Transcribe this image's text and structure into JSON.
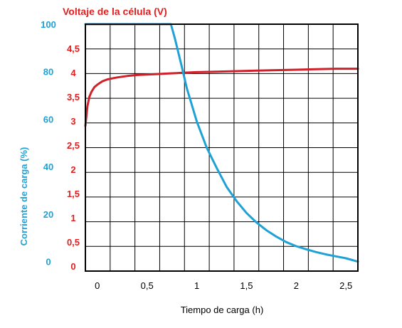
{
  "chart_data": {
    "type": "line",
    "title": "Voltaje de la célula (V)",
    "xlabel": "Tiempo de carga (h)",
    "ylabel_right_current": "Corriente de carga (%)",
    "xlim": [
      -0.12,
      2.62
    ],
    "x_ticks": [
      "0",
      "0,5",
      "1",
      "1,5",
      "2",
      "2,5"
    ],
    "x_tick_values": [
      0,
      0.5,
      1,
      1.5,
      2,
      2.5
    ],
    "voltage_axis": {
      "ticks": [
        "0",
        "0,5",
        "1",
        "1,5",
        "2",
        "2,5",
        "3",
        "3,5",
        "4",
        "4,5"
      ],
      "tick_values": [
        0,
        0.5,
        1,
        1.5,
        2,
        2.5,
        3,
        3.5,
        4,
        4.5
      ],
      "ylim": [
        -0.1,
        5.0
      ],
      "color": "#e02020"
    },
    "current_axis": {
      "ticks": [
        "0",
        "20",
        "40",
        "60",
        "80",
        "100"
      ],
      "tick_values": [
        0,
        20,
        40,
        60,
        80,
        100
      ],
      "ylim": [
        -4,
        100
      ],
      "color": "#1ea2d6"
    },
    "grid": true,
    "series": [
      {
        "axis": "voltage",
        "color": "#d0202a",
        "x": [
          -0.12,
          -0.11,
          -0.1,
          -0.08,
          -0.06,
          -0.03,
          0,
          0.05,
          0.1,
          0.15,
          0.2,
          0.3,
          0.4,
          0.5,
          0.6,
          0.7,
          0.8,
          0.9,
          1.0,
          1.2,
          1.4,
          1.6,
          1.8,
          2.0,
          2.2,
          2.4,
          2.62
        ],
        "y": [
          2.9,
          3.1,
          3.3,
          3.5,
          3.6,
          3.7,
          3.75,
          3.82,
          3.86,
          3.88,
          3.9,
          3.93,
          3.95,
          3.96,
          3.97,
          3.98,
          3.99,
          4.0,
          4.01,
          4.02,
          4.03,
          4.04,
          4.05,
          4.06,
          4.07,
          4.08,
          4.08
        ]
      },
      {
        "axis": "current",
        "color": "#1ea2d6",
        "x": [
          -0.12,
          0.0,
          0.2,
          0.4,
          0.6,
          0.74,
          0.78,
          0.85,
          0.9,
          0.95,
          1.0,
          1.1,
          1.2,
          1.3,
          1.4,
          1.5,
          1.6,
          1.7,
          1.8,
          1.9,
          2.0,
          2.1,
          2.2,
          2.3,
          2.4,
          2.5,
          2.62
        ],
        "y": [
          100,
          100,
          100,
          100,
          100,
          100,
          94,
          82,
          73,
          66,
          59,
          48,
          39.5,
          31.5,
          25.5,
          20.5,
          16.5,
          13.2,
          10.5,
          8.2,
          6.5,
          5.2,
          4,
          3,
          2.2,
          1.4,
          0
        ]
      }
    ]
  }
}
